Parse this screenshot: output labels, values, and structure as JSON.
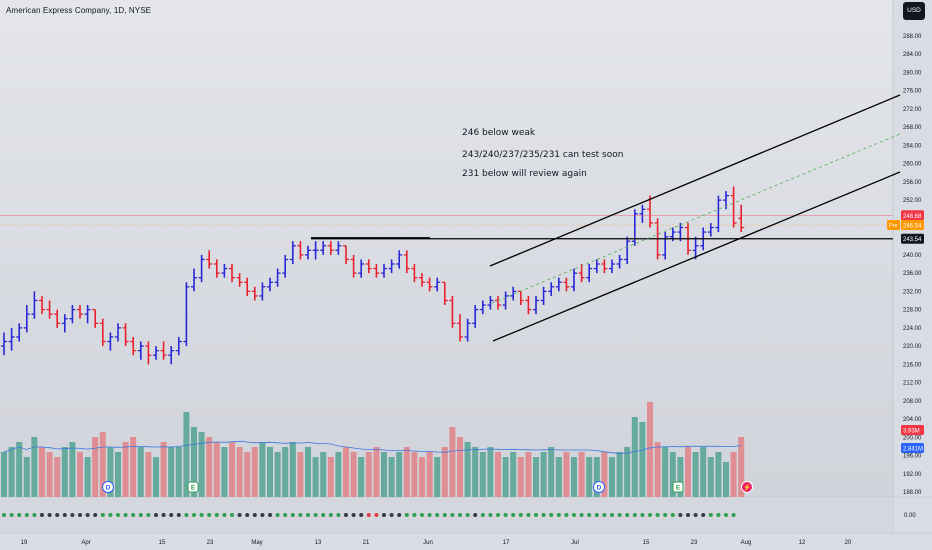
{
  "symbol": {
    "title": "American Express Company, 1D, NYSE",
    "currency": "USD"
  },
  "annotations": [
    "246 below weak",
    "243/240/237/235/231 can test soon",
    "231 below will review again"
  ],
  "chart_data": {
    "type": "ohlc",
    "price_axis": {
      "min": 186,
      "max": 290,
      "ticks": [
        288,
        284,
        280,
        276,
        272,
        268,
        264,
        260,
        256,
        252,
        248,
        244,
        240,
        236,
        232,
        228,
        224,
        220,
        216,
        212,
        208,
        204,
        200,
        196,
        192,
        188
      ]
    },
    "x_axis_labels": [
      "19",
      "Apr",
      "15",
      "23",
      "May",
      "13",
      "21",
      "Jun",
      "17",
      "Jul",
      "15",
      "23",
      "Aug",
      "12",
      "20"
    ],
    "price_markers": [
      {
        "label": "248.68",
        "price": 248.68,
        "color": "#f23645"
      },
      {
        "label": "Pre",
        "price": 246.54,
        "color": "#ff9800"
      },
      {
        "label": "246.54",
        "price": 246.54,
        "color": "#ff9800"
      },
      {
        "label": "243.54",
        "price": 243.54,
        "color": "#131722"
      }
    ],
    "volume_labels": [
      {
        "label": "3.93M",
        "color": "#f23645"
      },
      {
        "label": "2.841M",
        "color": "#2962ff"
      }
    ],
    "indicator_axis_label": "0.00",
    "events": [
      "D",
      "E",
      "D",
      "E",
      "⚡"
    ],
    "bars": [
      [
        220,
        223,
        218,
        221
      ],
      [
        221,
        224,
        219,
        222
      ],
      [
        222,
        225,
        221,
        224
      ],
      [
        224,
        229,
        223,
        227
      ],
      [
        227,
        232,
        226,
        230
      ],
      [
        230,
        231,
        227,
        228
      ],
      [
        228,
        230,
        226,
        227
      ],
      [
        227,
        228,
        224,
        225
      ],
      [
        225,
        227,
        223,
        226
      ],
      [
        226,
        229,
        225,
        228
      ],
      [
        228,
        229,
        226,
        227
      ],
      [
        227,
        229,
        225,
        228
      ],
      [
        228,
        228,
        224,
        225
      ],
      [
        225,
        226,
        220,
        221
      ],
      [
        221,
        223,
        219,
        222
      ],
      [
        222,
        225,
        221,
        224
      ],
      [
        224,
        225,
        220,
        221
      ],
      [
        221,
        222,
        218,
        219
      ],
      [
        219,
        221,
        217,
        220
      ],
      [
        220,
        221,
        216,
        218
      ],
      [
        218,
        220,
        217,
        219
      ],
      [
        219,
        221,
        217,
        218
      ],
      [
        218,
        220,
        216,
        219
      ],
      [
        219,
        222,
        218,
        221
      ],
      [
        221,
        234,
        220,
        233
      ],
      [
        233,
        237,
        232,
        235
      ],
      [
        235,
        240,
        234,
        239
      ],
      [
        239,
        241,
        237,
        238
      ],
      [
        238,
        239,
        235,
        236
      ],
      [
        236,
        238,
        235,
        237
      ],
      [
        237,
        238,
        234,
        235
      ],
      [
        235,
        236,
        233,
        234
      ],
      [
        234,
        235,
        231,
        232
      ],
      [
        232,
        233,
        230,
        231
      ],
      [
        231,
        234,
        230,
        233
      ],
      [
        233,
        235,
        232,
        234
      ],
      [
        234,
        237,
        233,
        236
      ],
      [
        236,
        240,
        235,
        239
      ],
      [
        239,
        243,
        238,
        242
      ],
      [
        242,
        243,
        239,
        240
      ],
      [
        240,
        242,
        239,
        241
      ],
      [
        241,
        243,
        239,
        241
      ],
      [
        241,
        243,
        240,
        242
      ],
      [
        242,
        243,
        240,
        241
      ],
      [
        241,
        243,
        240,
        242
      ],
      [
        242,
        242,
        238,
        239
      ],
      [
        239,
        240,
        235,
        236
      ],
      [
        236,
        239,
        235,
        238
      ],
      [
        238,
        239,
        236,
        237
      ],
      [
        237,
        238,
        235,
        236
      ],
      [
        236,
        238,
        235,
        237
      ],
      [
        237,
        239,
        236,
        238
      ],
      [
        238,
        241,
        237,
        240
      ],
      [
        240,
        241,
        236,
        237
      ],
      [
        237,
        238,
        234,
        235
      ],
      [
        235,
        236,
        233,
        234
      ],
      [
        234,
        235,
        232,
        233
      ],
      [
        233,
        235,
        232,
        234
      ],
      [
        234,
        234,
        229,
        230
      ],
      [
        230,
        231,
        224,
        225
      ],
      [
        225,
        227,
        221,
        222
      ],
      [
        222,
        226,
        221,
        225
      ],
      [
        225,
        229,
        224,
        228
      ],
      [
        228,
        230,
        227,
        229
      ],
      [
        229,
        231,
        228,
        230
      ],
      [
        230,
        231,
        228,
        229
      ],
      [
        229,
        232,
        228,
        231
      ],
      [
        231,
        233,
        230,
        232
      ],
      [
        232,
        232,
        229,
        230
      ],
      [
        230,
        231,
        227,
        228
      ],
      [
        228,
        231,
        227,
        230
      ],
      [
        230,
        233,
        229,
        232
      ],
      [
        232,
        234,
        231,
        233
      ],
      [
        233,
        235,
        232,
        234
      ],
      [
        234,
        235,
        232,
        233
      ],
      [
        233,
        237,
        232,
        236
      ],
      [
        236,
        238,
        234,
        235
      ],
      [
        235,
        238,
        234,
        237
      ],
      [
        237,
        239,
        236,
        238
      ],
      [
        238,
        239,
        236,
        237
      ],
      [
        237,
        239,
        236,
        238
      ],
      [
        238,
        240,
        237,
        239
      ],
      [
        239,
        244,
        238,
        243
      ],
      [
        243,
        250,
        242,
        249
      ],
      [
        249,
        251,
        247,
        250
      ],
      [
        250,
        253,
        246,
        247
      ],
      [
        247,
        248,
        239,
        240
      ],
      [
        240,
        245,
        239,
        244
      ],
      [
        244,
        246,
        243,
        245
      ],
      [
        245,
        247,
        243,
        246
      ],
      [
        246,
        247,
        240,
        241
      ],
      [
        241,
        244,
        239,
        242
      ],
      [
        242,
        246,
        241,
        245
      ],
      [
        245,
        247,
        244,
        246
      ],
      [
        246,
        253,
        245,
        252
      ],
      [
        252,
        254,
        250,
        253
      ],
      [
        253,
        255,
        246,
        247
      ],
      [
        248,
        251,
        245,
        246
      ]
    ],
    "volume": [
      0.45,
      0.5,
      0.55,
      0.4,
      0.6,
      0.5,
      0.45,
      0.4,
      0.5,
      0.55,
      0.45,
      0.4,
      0.6,
      0.65,
      0.5,
      0.45,
      0.55,
      0.6,
      0.5,
      0.45,
      0.4,
      0.55,
      0.5,
      0.5,
      0.85,
      0.7,
      0.65,
      0.6,
      0.55,
      0.5,
      0.55,
      0.5,
      0.45,
      0.5,
      0.55,
      0.5,
      0.45,
      0.5,
      0.55,
      0.45,
      0.5,
      0.4,
      0.45,
      0.4,
      0.45,
      0.5,
      0.45,
      0.4,
      0.45,
      0.5,
      0.45,
      0.4,
      0.45,
      0.5,
      0.45,
      0.4,
      0.45,
      0.4,
      0.5,
      0.7,
      0.6,
      0.55,
      0.5,
      0.45,
      0.5,
      0.45,
      0.4,
      0.45,
      0.4,
      0.45,
      0.4,
      0.45,
      0.5,
      0.4,
      0.45,
      0.4,
      0.45,
      0.4,
      0.4,
      0.45,
      0.4,
      0.45,
      0.5,
      0.8,
      0.75,
      0.95,
      0.55,
      0.5,
      0.45,
      0.4,
      0.5,
      0.45,
      0.5,
      0.4,
      0.45,
      0.35,
      0.45,
      0.6
    ],
    "indicator_dots": "gggggddddddddgggggggddddgggggggdddddgggggggggdddrrdddgggggggggdggggggggggggggggggggggggggddddgggg"
  },
  "colors": {
    "up": "#2928d6",
    "down": "#e8212e",
    "vol_up": "#5fa89a",
    "vol_down": "#df8a90",
    "ma": "#3a78e0",
    "dot_green": "#2e9e4f",
    "dot_dark": "#363a45",
    "dot_red": "#e63946",
    "channel": "#000000",
    "mid": "#4caf50"
  }
}
